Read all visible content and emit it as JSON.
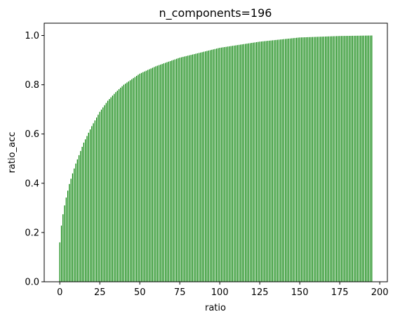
{
  "chart_data": {
    "type": "bar",
    "title": "n_components=196",
    "xlabel": "ratio",
    "ylabel": "ratio_acc",
    "n_bars": 196,
    "x_ticks": [
      "0",
      "25",
      "50",
      "75",
      "100",
      "125",
      "150",
      "175",
      "200"
    ],
    "y_ticks": [
      "0.0",
      "0.2",
      "0.4",
      "0.6",
      "0.8",
      "1.0"
    ],
    "xlim": [
      -9.75,
      204.75
    ],
    "ylim": [
      0,
      1.05
    ],
    "bar_color": "#008000",
    "anchor_points": [
      [
        0,
        0.16
      ],
      [
        1,
        0.228
      ],
      [
        2,
        0.274
      ],
      [
        3,
        0.31
      ],
      [
        4,
        0.342
      ],
      [
        5,
        0.37
      ],
      [
        6,
        0.397
      ],
      [
        8,
        0.44
      ],
      [
        10,
        0.48
      ],
      [
        15,
        0.565
      ],
      [
        20,
        0.632
      ],
      [
        25,
        0.69
      ],
      [
        30,
        0.735
      ],
      [
        35,
        0.77
      ],
      [
        40,
        0.8
      ],
      [
        50,
        0.845
      ],
      [
        60,
        0.875
      ],
      [
        75,
        0.91
      ],
      [
        100,
        0.95
      ],
      [
        125,
        0.975
      ],
      [
        150,
        0.992
      ],
      [
        175,
        0.998
      ],
      [
        195,
        1.0
      ]
    ]
  }
}
